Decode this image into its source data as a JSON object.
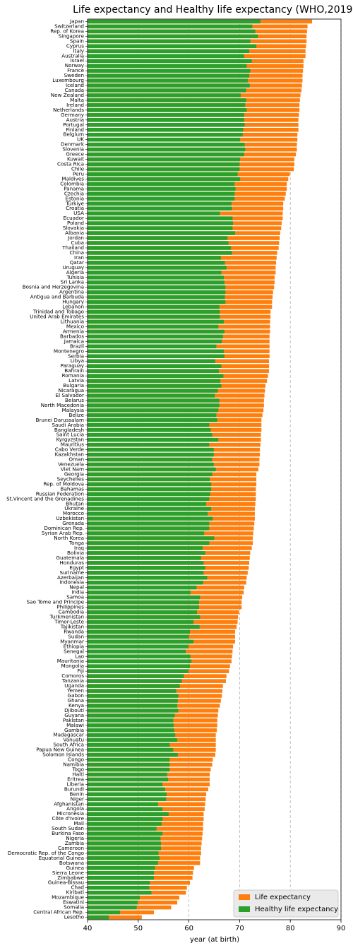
{
  "chart_data": {
    "type": "barh",
    "title": "Life expectancy and Healthy life expectancy (WHO,2019)",
    "x_label": "year (at birth)",
    "xlim": [
      40,
      90
    ],
    "xticks": [
      40,
      50,
      60,
      70,
      80,
      90
    ],
    "grid": true,
    "legend": "lower right",
    "categories": [
      "Japan",
      "Switzerland",
      "Rep. of Korea",
      "Singapore",
      "Spain",
      "Cyprus",
      "Italy",
      "Australia",
      "Israel",
      "Norway",
      "France",
      "Sweden",
      "Luxembourg",
      "Iceland",
      "Canada",
      "New Zealand",
      "Malta",
      "Ireland",
      "Netherlands",
      "Germany",
      "Austria",
      "Portugal",
      "Finland",
      "Belgium",
      "UK",
      "Denmark",
      "Slovenia",
      "Greece",
      "Kuwait",
      "Costa Rica",
      "Chile",
      "Peru",
      "Maldives",
      "Colombia",
      "Panama",
      "Czechia",
      "Estonia",
      "Türkiye",
      "Croatia",
      "USA",
      "Ecuador",
      "Poland",
      "Slovakia",
      "Albania",
      "Jordan",
      "Cuba",
      "Thailand",
      "China",
      "Iran",
      "Qatar",
      "Uruguay",
      "Algeria",
      "Tunisia",
      "Sri Lanka",
      "Bosnia and Herzegovina",
      "Argentina",
      "Antigua and Barbuda",
      "Hungary",
      "Lebanon",
      "Trinidad and Tobago",
      "United Arab Emirates",
      "Lithuania",
      "Mexico",
      "Armenia",
      "Barbados",
      "Jamaica",
      "Brazil",
      "Montenegro",
      "Serbia",
      "Libya",
      "Paraguay",
      "Bahrain",
      "Romania",
      "Latvia",
      "Bulgaria",
      "Nicaragua",
      "El Salvador",
      "Belarus",
      "North Macedonia",
      "Malaysia",
      "Belize",
      "Brunei Darussalam",
      "Saudi Arabia",
      "Bangladesh",
      "Saint Lucia",
      "Kyrgyzstan",
      "Mauritius",
      "Cabo Verde",
      "Kazakhstan",
      "Oman",
      "Venezuela",
      "Viet Nam",
      "Georgia",
      "Seychelles",
      "Rep. of Moldova",
      "Bahamas",
      "Russian Federation",
      "St.Vincent and the Grenadines",
      "Bhutan",
      "Ukraine",
      "Morocco",
      "Uzbekistan",
      "Grenada",
      "Dominican Rep.",
      "Syrian Arab Rep.",
      "North Korea",
      "Tonga",
      "Iraq",
      "Bolivia",
      "Guatemala",
      "Honduras",
      "Egypt",
      "Suriname",
      "Azerbaijan",
      "Indonesia",
      "Nepal",
      "India",
      "Samoa",
      "Sao Tome and Principe",
      "Philippines",
      "Cambodia",
      "Turkmenistan",
      "Timor-Leste",
      "Tajikistan",
      "Rwanda",
      "Sudan",
      "Myanmar",
      "Ethiopia",
      "Senegal",
      "Lao",
      "Mauritania",
      "Mongolia",
      "Fiji",
      "Comoros",
      "Tanzania",
      "Uganda",
      "Yemen",
      "Gabon",
      "Ghana",
      "Kenya",
      "Djibouti",
      "Guyana",
      "Pakistan",
      "Malawi",
      "Gambia",
      "Madagascar",
      "Vanuatu",
      "South Africa",
      "Papua New Guinea",
      "Solomon Islands",
      "Congo",
      "Namibia",
      "Togo",
      "Haiti",
      "Eritrea",
      "Liberia",
      "Burundi",
      "Benin",
      "Niger",
      "Afghanistan",
      "Angola",
      "Micronesia",
      "Côte d'Ivoire",
      "Mali",
      "South Sudan",
      "Burkina Faso",
      "Nigeria",
      "Zambia",
      "Cameroon",
      "Democratic Rep. of the Congo",
      "Equatorial Guinea",
      "Botswana",
      "Guinea",
      "Sierra Leone",
      "Zimbabwe",
      "Guinea-Bissau",
      "Chad",
      "Kiribati",
      "Mozambique",
      "Eswatini",
      "Somalia",
      "Central African Rep.",
      "Lesotho"
    ],
    "series": [
      {
        "name": "Life expectancy",
        "color": "#ff7f0e",
        "values": [
          84.3,
          83.4,
          83.3,
          83.2,
          83.2,
          83.1,
          83.0,
          83.0,
          82.6,
          82.6,
          82.5,
          82.4,
          82.4,
          82.3,
          82.2,
          82.0,
          81.9,
          81.8,
          81.8,
          81.7,
          81.6,
          81.6,
          81.6,
          81.4,
          81.4,
          81.3,
          81.3,
          81.1,
          80.8,
          80.8,
          80.7,
          79.9,
          79.6,
          79.3,
          79.3,
          79.1,
          78.9,
          78.6,
          78.6,
          78.5,
          78.5,
          78.3,
          78.2,
          78.0,
          77.9,
          77.8,
          77.7,
          77.4,
          77.3,
          77.2,
          77.1,
          77.1,
          76.9,
          76.9,
          76.8,
          76.6,
          76.5,
          76.4,
          76.4,
          76.1,
          76.1,
          76.0,
          76.0,
          76.0,
          75.9,
          75.9,
          75.9,
          75.9,
          75.9,
          75.8,
          75.8,
          75.8,
          75.6,
          75.4,
          75.1,
          75.0,
          74.9,
          74.8,
          74.8,
          74.7,
          74.5,
          74.3,
          74.3,
          74.3,
          74.2,
          74.2,
          74.1,
          74.0,
          74.0,
          73.9,
          73.9,
          73.7,
          73.3,
          73.3,
          73.3,
          73.2,
          73.2,
          73.2,
          73.1,
          73.0,
          73.0,
          73.0,
          72.9,
          72.8,
          72.7,
          72.6,
          72.6,
          72.4,
          72.1,
          72.0,
          71.9,
          71.8,
          71.6,
          71.4,
          71.3,
          70.9,
          70.8,
          70.5,
          70.4,
          70.4,
          69.9,
          69.7,
          69.6,
          69.4,
          69.1,
          69.1,
          69.1,
          68.7,
          68.6,
          68.5,
          68.4,
          68.1,
          67.9,
          67.4,
          67.3,
          66.7,
          66.6,
          66.5,
          66.3,
          66.1,
          65.8,
          65.7,
          65.6,
          65.6,
          65.5,
          65.3,
          65.3,
          65.3,
          65.3,
          65.2,
          64.7,
          64.6,
          64.3,
          64.1,
          64.1,
          64.1,
          63.8,
          63.4,
          63.3,
          63.2,
          63.1,
          62.9,
          62.9,
          62.8,
          62.8,
          62.7,
          62.6,
          62.5,
          62.4,
          62.4,
          62.2,
          62.2,
          61.0,
          60.8,
          60.7,
          60.2,
          59.6,
          59.4,
          58.1,
          57.7,
          56.5,
          53.1,
          50.7
        ]
      },
      {
        "name": "Healthy life expectancy",
        "color": "#2ca02c",
        "values": [
          74.1,
          72.5,
          73.1,
          73.6,
          72.1,
          73.3,
          71.9,
          70.9,
          72.4,
          71.4,
          72.1,
          71.9,
          71.6,
          72.0,
          71.3,
          70.2,
          71.3,
          71.1,
          71.4,
          70.9,
          70.9,
          71.0,
          70.7,
          70.6,
          70.1,
          71.0,
          71.1,
          70.9,
          70.1,
          70.0,
          70.0,
          69.6,
          70.1,
          69.0,
          69.2,
          69.0,
          69.0,
          68.4,
          68.5,
          66.1,
          68.6,
          68.7,
          68.6,
          69.1,
          67.6,
          67.8,
          68.3,
          68.5,
          66.3,
          67.1,
          67.4,
          66.4,
          66.9,
          67.0,
          67.2,
          67.2,
          67.1,
          67.2,
          66.0,
          66.1,
          66.1,
          66.9,
          65.8,
          67.0,
          66.7,
          66.5,
          65.4,
          66.9,
          67.0,
          65.2,
          66.4,
          65.9,
          66.8,
          66.2,
          66.4,
          65.7,
          65.1,
          66.0,
          66.0,
          65.8,
          65.4,
          65.6,
          64.0,
          64.3,
          64.6,
          65.8,
          64.0,
          64.9,
          64.9,
          64.6,
          64.9,
          65.3,
          64.6,
          64.1,
          64.4,
          64.4,
          64.2,
          64.0,
          63.4,
          64.4,
          63.7,
          64.7,
          64.0,
          64.0,
          63.0,
          65.0,
          64.0,
          62.7,
          63.2,
          62.4,
          62.9,
          63.2,
          62.9,
          63.6,
          62.8,
          61.5,
          60.3,
          62.2,
          62.0,
          62.0,
          61.6,
          62.2,
          60.9,
          62.1,
          60.2,
          60.0,
          60.9,
          59.9,
          59.4,
          60.3,
          60.5,
          60.2,
          59.9,
          59.0,
          58.6,
          58.2,
          57.5,
          57.9,
          57.8,
          57.7,
          57.9,
          57.2,
          56.9,
          57.0,
          57.1,
          57.3,
          57.7,
          56.2,
          56.9,
          57.8,
          56.2,
          56.2,
          56.2,
          55.7,
          55.9,
          54.8,
          55.3,
          55.6,
          55.5,
          53.9,
          54.8,
          56.0,
          54.8,
          54.6,
          53.6,
          54.8,
          54.4,
          54.5,
          54.5,
          54.0,
          54.2,
          53.9,
          53.3,
          53.1,
          53.1,
          52.3,
          52.2,
          52.6,
          50.3,
          49.9,
          49.7,
          46.4,
          44.2
        ]
      }
    ]
  }
}
